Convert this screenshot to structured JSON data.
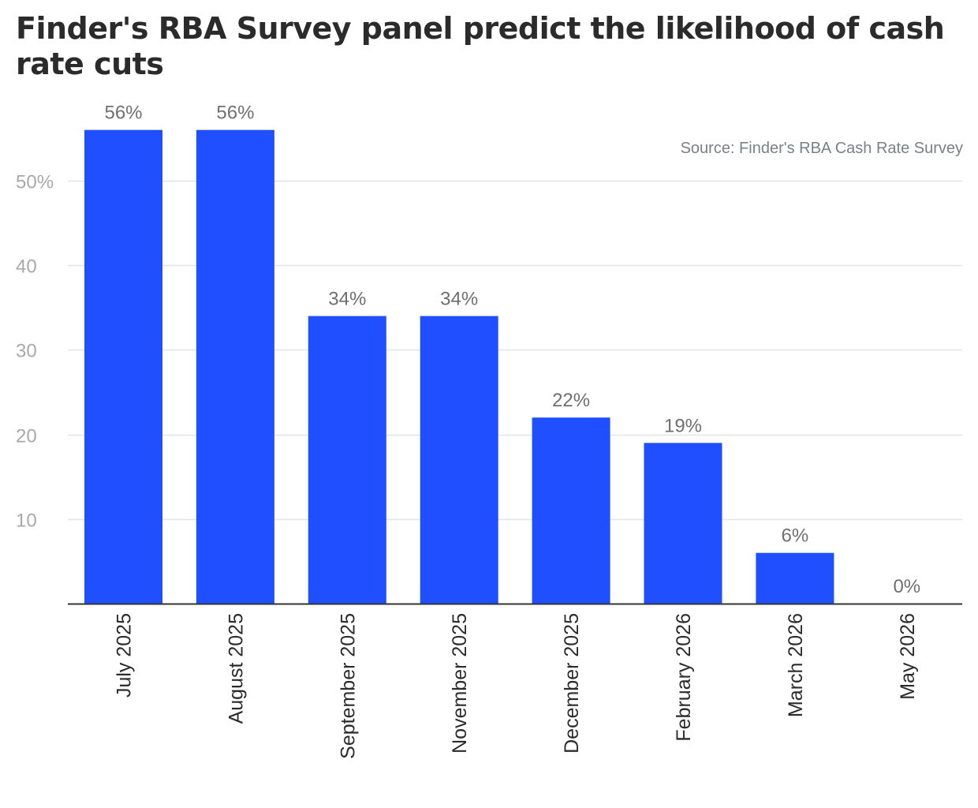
{
  "chart_data": {
    "type": "bar",
    "title": "Finder's RBA Survey panel predict the likelihood of cash rate cuts",
    "source": "Source: Finder's RBA Cash Rate Survey",
    "categories": [
      "July 2025",
      "August 2025",
      "September 2025",
      "November 2025",
      "December 2025",
      "February 2026",
      "March 2026",
      "May 2026"
    ],
    "values": [
      56,
      56,
      34,
      34,
      22,
      19,
      6,
      0
    ],
    "data_labels": [
      "56%",
      "56%",
      "34%",
      "34%",
      "22%",
      "19%",
      "6%",
      "0%"
    ],
    "ylim": [
      0,
      56
    ],
    "yticks": [
      10,
      20,
      30,
      40,
      50
    ],
    "ytick_labels": [
      "10",
      "20",
      "30",
      "40",
      "50%"
    ],
    "grid": true,
    "bar_color": "#1f4fff"
  }
}
